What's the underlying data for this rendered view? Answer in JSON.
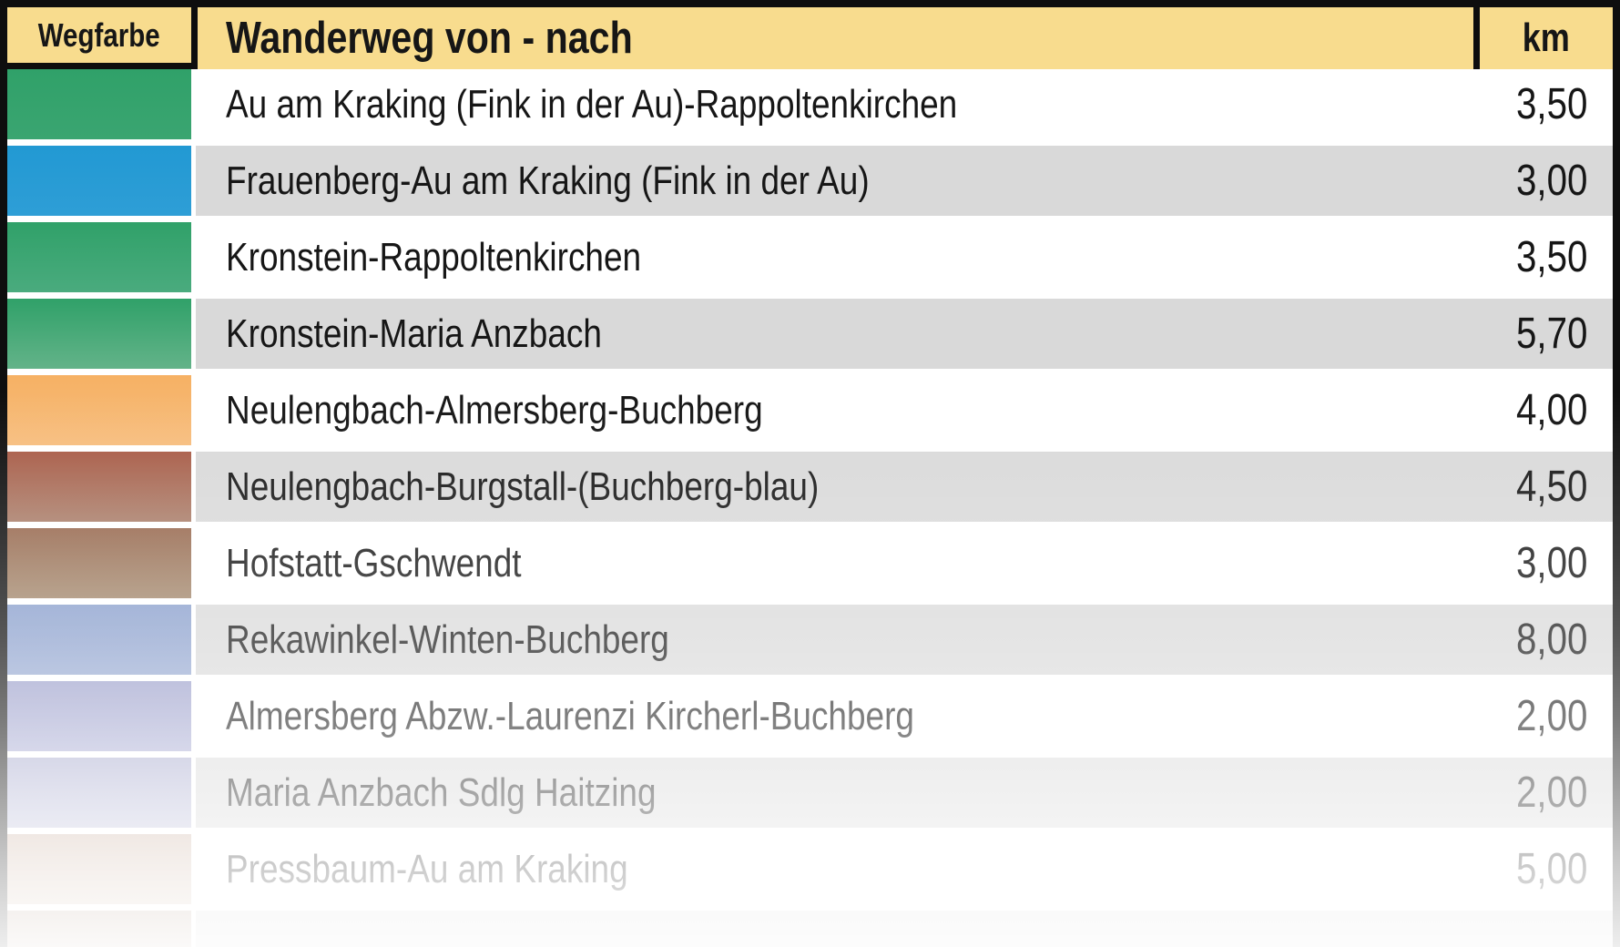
{
  "table": {
    "headers": {
      "wegfarbe": "Wegfarbe",
      "route": "Wanderweg von - nach",
      "km": "km"
    },
    "rows": [
      {
        "name": "Au am Kraking (Fink in der Au)-Rappoltenkirchen",
        "km": "3,50",
        "trail_color": "green",
        "color_top": "#30A169",
        "color_bottom": "#3AA571"
      },
      {
        "name": "Frauenberg-Au am Kraking (Fink in der Au)",
        "km": "3,00",
        "trail_color": "blue",
        "color_top": "#2299D3",
        "color_bottom": "#2E9ED6"
      },
      {
        "name": "Kronstein-Rappoltenkirchen",
        "km": "3,50",
        "trail_color": "green",
        "color_top": "#30A169",
        "color_bottom": "#4AAB7E"
      },
      {
        "name": "Kronstein-Maria Anzbach",
        "km": "5,70",
        "trail_color": "green",
        "color_top": "#30A169",
        "color_bottom": "#63B389"
      },
      {
        "name": "Neulengbach-Almersberg-Buchberg",
        "km": "4,00",
        "trail_color": "orange",
        "color_top": "#F6B164",
        "color_bottom": "#F7BD7D"
      },
      {
        "name": "Neulengbach-Burgstall-(Buchberg-blau)",
        "km": "4,50",
        "trail_color": "red-brown",
        "color_top": "#A85A45",
        "color_bottom": "#A97D69"
      },
      {
        "name": "Hofstatt-Gschwendt",
        "km": "3,00",
        "trail_color": "brown",
        "color_top": "#96664C",
        "color_bottom": "#A08468"
      },
      {
        "name": "Rekawinkel-Winten-Buchberg",
        "km": "8,00",
        "trail_color": "steel-blue",
        "color_top": "#869CCB",
        "color_bottom": "#93A6D0"
      },
      {
        "name": "Almersberg Abzw.-Laurenzi Kircherl-Buchberg",
        "km": "2,00",
        "trail_color": "lavender",
        "color_top": "#989CC9",
        "color_bottom": "#A9ACD3"
      },
      {
        "name": "Maria Anzbach Sdlg Haitzing",
        "km": "2,00",
        "trail_color": "pale-lavender",
        "color_top": "#A8AACE",
        "color_bottom": "#BCBED9"
      },
      {
        "name": "Pressbaum-Au am Kraking",
        "km": "5,00",
        "trail_color": "pale-rose",
        "color_top": "#CBB0A0",
        "color_bottom": "#D8C4B6"
      }
    ],
    "fade_row": {
      "color_top": "#B59C8C",
      "color_bottom": "#C9B7AA"
    }
  },
  "colors": {
    "header_bg": "#F8DC8E",
    "border": "#0E0E0E",
    "row_white": "#FFFFFF",
    "row_gray": "#D9D9D9",
    "text": "#161616"
  },
  "chart_data": {
    "type": "table",
    "title": "Wanderweg von - nach",
    "columns": [
      "Wegfarbe",
      "Wanderweg von - nach",
      "km"
    ],
    "rows": [
      [
        "green",
        "Au am Kraking (Fink in der Au)-Rappoltenkirchen",
        "3,50"
      ],
      [
        "blue",
        "Frauenberg-Au am Kraking (Fink in der Au)",
        "3,00"
      ],
      [
        "green",
        "Kronstein-Rappoltenkirchen",
        "3,50"
      ],
      [
        "green",
        "Kronstein-Maria Anzbach",
        "5,70"
      ],
      [
        "orange",
        "Neulengbach-Almersberg-Buchberg",
        "4,00"
      ],
      [
        "red-brown",
        "Neulengbach-Burgstall-(Buchberg-blau)",
        "4,50"
      ],
      [
        "brown",
        "Hofstatt-Gschwendt",
        "3,00"
      ],
      [
        "steel-blue",
        "Rekawinkel-Winten-Buchberg",
        "8,00"
      ],
      [
        "lavender",
        "Almersberg Abzw.-Laurenzi Kircherl-Buchberg",
        "2,00"
      ],
      [
        "pale-lavender",
        "Maria Anzbach Sdlg Haitzing",
        "2,00"
      ],
      [
        "pale-rose",
        "Pressbaum-Au am Kraking",
        "5,00"
      ]
    ],
    "km_values": [
      3.5,
      3.0,
      3.5,
      5.7,
      4.0,
      4.5,
      3.0,
      8.0,
      2.0,
      2.0,
      5.0
    ],
    "notes": "rows fade to white toward the bottom of the image"
  }
}
